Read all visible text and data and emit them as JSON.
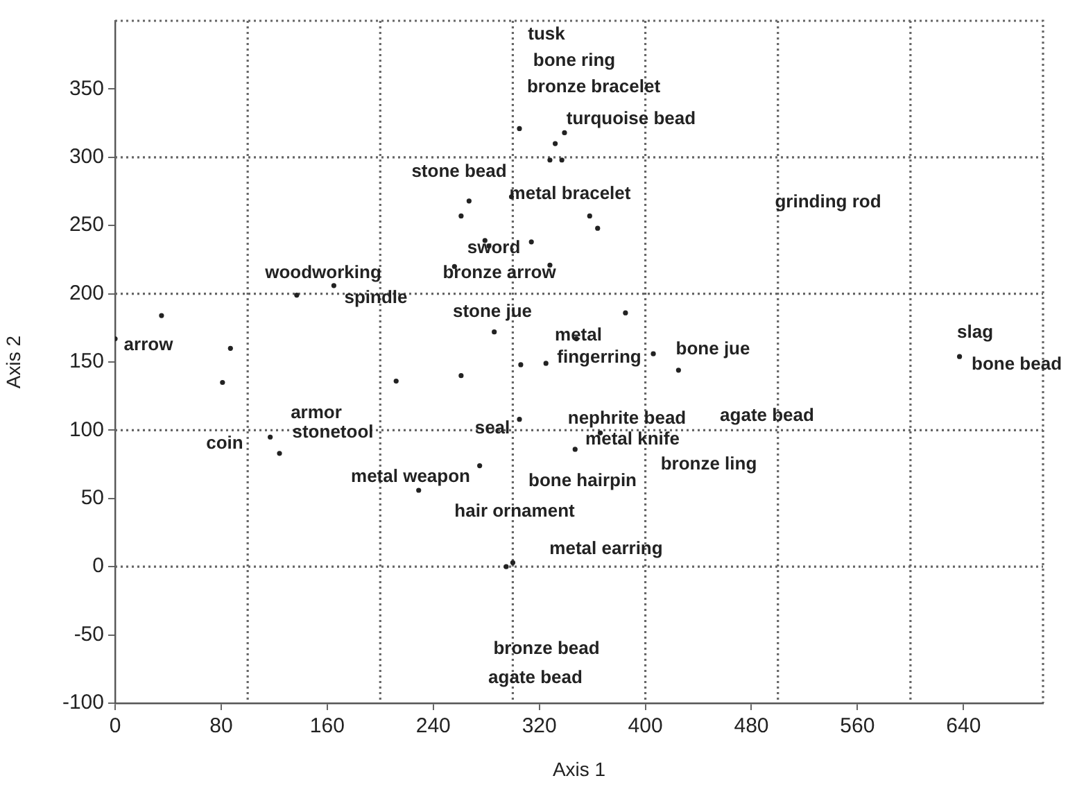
{
  "chart_data": {
    "type": "scatter",
    "xlabel": "Axis 1",
    "ylabel": "Axis 2",
    "xlim": [
      0,
      700
    ],
    "xticks": [
      0,
      80,
      160,
      240,
      320,
      400,
      480,
      560,
      640
    ],
    "ylim": [
      -100,
      400
    ],
    "yticks": [
      -100,
      -50,
      0,
      50,
      100,
      150,
      200,
      250,
      300,
      350
    ],
    "marker": "circle",
    "legend": false,
    "series": [
      {
        "color": "#222222",
        "x": [
          305,
          332,
          339,
          328,
          337,
          267,
          261,
          279,
          282,
          299,
          314,
          328,
          256,
          137,
          165,
          358,
          364,
          35,
          0,
          87,
          81,
          212,
          261,
          286,
          306,
          325,
          305,
          117,
          124,
          275,
          229,
          295,
          300,
          347,
          385,
          348,
          406,
          425,
          637,
          366
        ],
        "values": [
          321,
          310,
          318,
          298,
          298,
          268,
          257,
          239,
          235,
          271,
          238,
          221,
          220,
          199,
          206,
          257,
          248,
          184,
          167,
          160,
          135,
          136,
          140,
          172,
          148,
          149,
          108,
          95,
          83,
          74,
          56,
          0,
          3,
          86,
          186,
          167,
          156,
          144,
          154,
          98
        ]
      }
    ],
    "ref_lines": [
      {
        "axis": "x",
        "value": 100,
        "color": "#666666",
        "line_style": "dotted"
      },
      {
        "axis": "x",
        "value": 200,
        "color": "#666666",
        "line_style": "dotted"
      },
      {
        "axis": "x",
        "value": 300,
        "color": "#666666",
        "line_style": "dotted"
      },
      {
        "axis": "x",
        "value": 400,
        "color": "#666666",
        "line_style": "dotted"
      },
      {
        "axis": "x",
        "value": 500,
        "color": "#666666",
        "line_style": "dotted"
      },
      {
        "axis": "x",
        "value": 600,
        "color": "#666666",
        "line_style": "dotted"
      },
      {
        "axis": "y",
        "value": 0,
        "color": "#666666",
        "line_style": "dotted"
      },
      {
        "axis": "y",
        "value": 100,
        "color": "#666666",
        "line_style": "dotted"
      },
      {
        "axis": "y",
        "value": 200,
        "color": "#666666",
        "line_style": "dotted"
      },
      {
        "axis": "y",
        "value": 300,
        "color": "#666666",
        "line_style": "dotted"
      }
    ],
    "annotations": [
      "tusk",
      "bone ring",
      "bronze bracelet",
      "turquoise bead",
      "stone bead",
      "metal bracelet",
      "grinding rod",
      "sword",
      "bronze arrow",
      "woodworking",
      "spindle",
      "stone jue",
      "arrow",
      "metal",
      "fingerring",
      "bone jue",
      "slag",
      "bone bead",
      "armor",
      "stonetool",
      "coin",
      "seal",
      "nephrite bead",
      "metal knife",
      "agate bead",
      "bronze ling",
      "metal weapon",
      "bone hairpin",
      "hair ornament",
      "metal earring",
      "bronze bead",
      "agate bead"
    ]
  }
}
